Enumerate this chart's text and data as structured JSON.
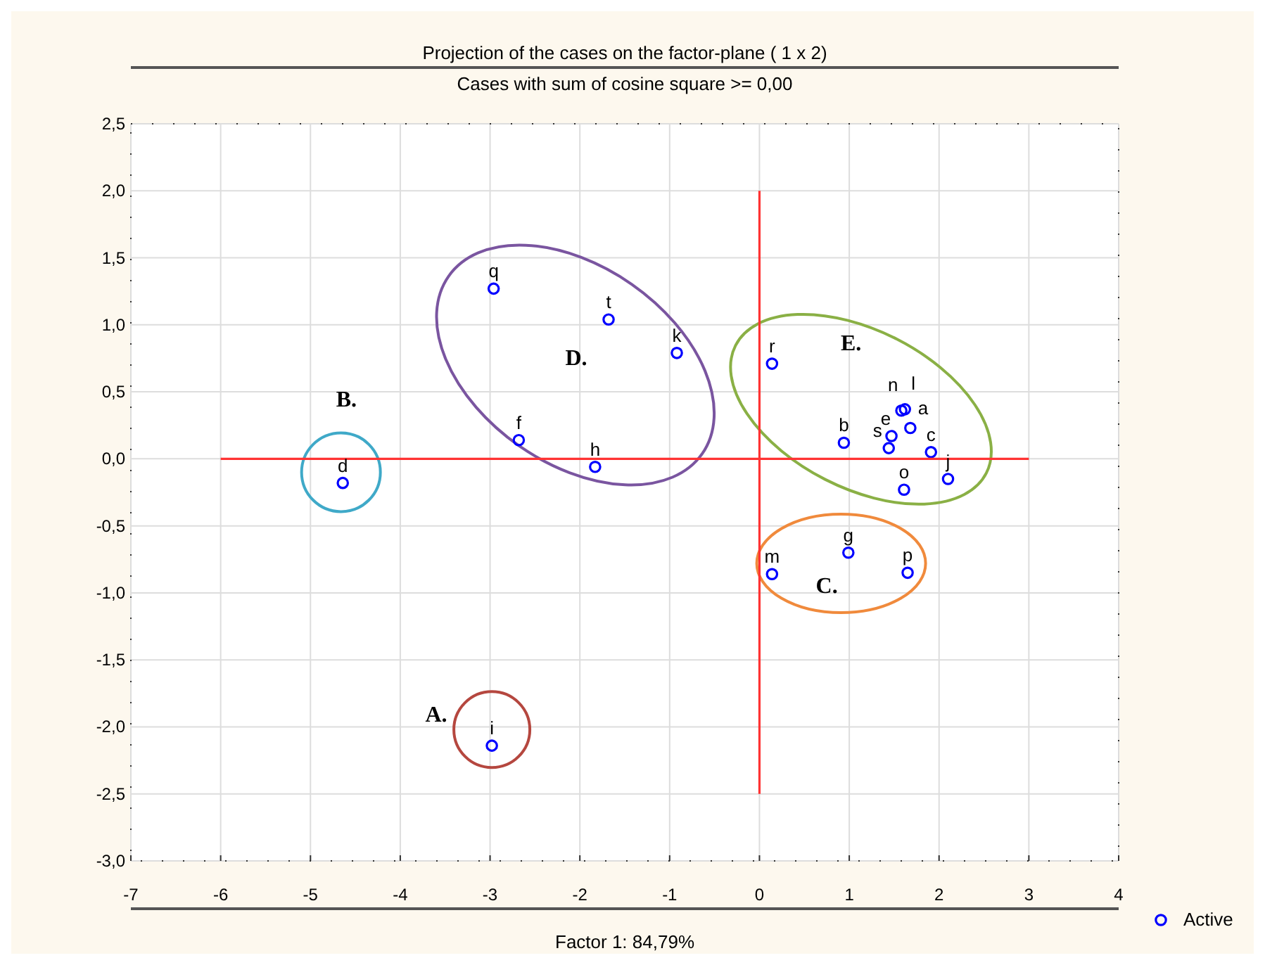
{
  "chart_data": {
    "type": "scatter",
    "title": "Projection of the cases on the factor-plane ( 1 x 2)",
    "subtitle": "Cases with sum of cosine square >= 0,00",
    "xlabel": "Factor 1: 84,79%",
    "series": [
      {
        "name": "Active",
        "color": "#0000ff",
        "marker": "circle",
        "x": [
          -2.96,
          -1.68,
          -0.92,
          -2.68,
          -1.83,
          -4.64,
          -2.98,
          0.14,
          0.94,
          1.58,
          1.62,
          1.47,
          1.44,
          1.68,
          1.91,
          2.1,
          1.61,
          0.99,
          0.14,
          1.65
        ],
        "values": [
          1.27,
          1.04,
          0.79,
          0.14,
          -0.06,
          -0.18,
          -2.14,
          0.71,
          0.12,
          0.36,
          0.37,
          0.17,
          0.08,
          0.23,
          0.05,
          -0.15,
          -0.23,
          -0.7,
          -0.86,
          -0.85
        ]
      },
      {
        "type": "line",
        "color": "#ff3333",
        "marker": "none",
        "x": [
          0,
          0
        ],
        "values": [
          2,
          -2.5
        ]
      },
      {
        "type": "line",
        "color": "#ff3333",
        "marker": "none",
        "x": [
          -6,
          3
        ],
        "values": [
          0,
          0
        ]
      }
    ],
    "grid": true,
    "legend": "bottom right",
    "xlim": [
      -7,
      4
    ],
    "xticks": [
      -7,
      -6,
      -5,
      -4,
      -3,
      -2,
      -1,
      0,
      1,
      2,
      3,
      4
    ],
    "ylim": [
      -3,
      2.5
    ],
    "yticks": [
      {
        "value": -3,
        "label": "-3,0"
      },
      {
        "value": -2.5,
        "label": "-2,5"
      },
      {
        "value": -2,
        "label": "-2,0"
      },
      {
        "value": -1.5,
        "label": "-1,5"
      },
      {
        "value": -1,
        "label": "-1,0"
      },
      {
        "value": -0.5,
        "label": "-0,5"
      },
      {
        "value": 0,
        "label": "0,0"
      },
      {
        "value": 0.5,
        "label": "0,5"
      },
      {
        "value": 1,
        "label": "1,0"
      },
      {
        "value": 1.5,
        "label": "1,5"
      },
      {
        "value": 2,
        "label": "2,0"
      },
      {
        "value": 2.5,
        "label": "2,5"
      }
    ],
    "annotations": [
      {
        "text": "q",
        "x": -2.96,
        "y": 1.27
      },
      {
        "text": "t",
        "x": -1.68,
        "y": 1.04
      },
      {
        "text": "k",
        "x": -0.92,
        "y": 0.79
      },
      {
        "text": "f",
        "x": -2.68,
        "y": 0.14
      },
      {
        "text": "h",
        "x": -1.83,
        "y": -0.06
      },
      {
        "text": "d",
        "x": -4.64,
        "y": -0.18
      },
      {
        "text": "i",
        "x": -2.98,
        "y": -2.14
      },
      {
        "text": "r",
        "x": 0.14,
        "y": 0.71
      },
      {
        "text": "b",
        "x": 0.94,
        "y": 0.12
      },
      {
        "text": "n",
        "x": 1.58,
        "y": 0.36
      },
      {
        "text": "l",
        "x": 1.62,
        "y": 0.37
      },
      {
        "text": "e",
        "x": 1.47,
        "y": 0.17
      },
      {
        "text": "s",
        "x": 1.44,
        "y": 0.08
      },
      {
        "text": "a",
        "x": 1.68,
        "y": 0.23
      },
      {
        "text": "c",
        "x": 1.91,
        "y": 0.05
      },
      {
        "text": "j",
        "x": 2.1,
        "y": -0.15
      },
      {
        "text": "o",
        "x": 1.61,
        "y": -0.23
      },
      {
        "text": "g",
        "x": 0.99,
        "y": -0.7
      },
      {
        "text": "m",
        "x": 0.14,
        "y": -0.86
      },
      {
        "text": "p",
        "x": 1.65,
        "y": -0.85
      },
      "A.",
      "B.",
      "C.",
      "D.",
      "E."
    ]
  }
}
